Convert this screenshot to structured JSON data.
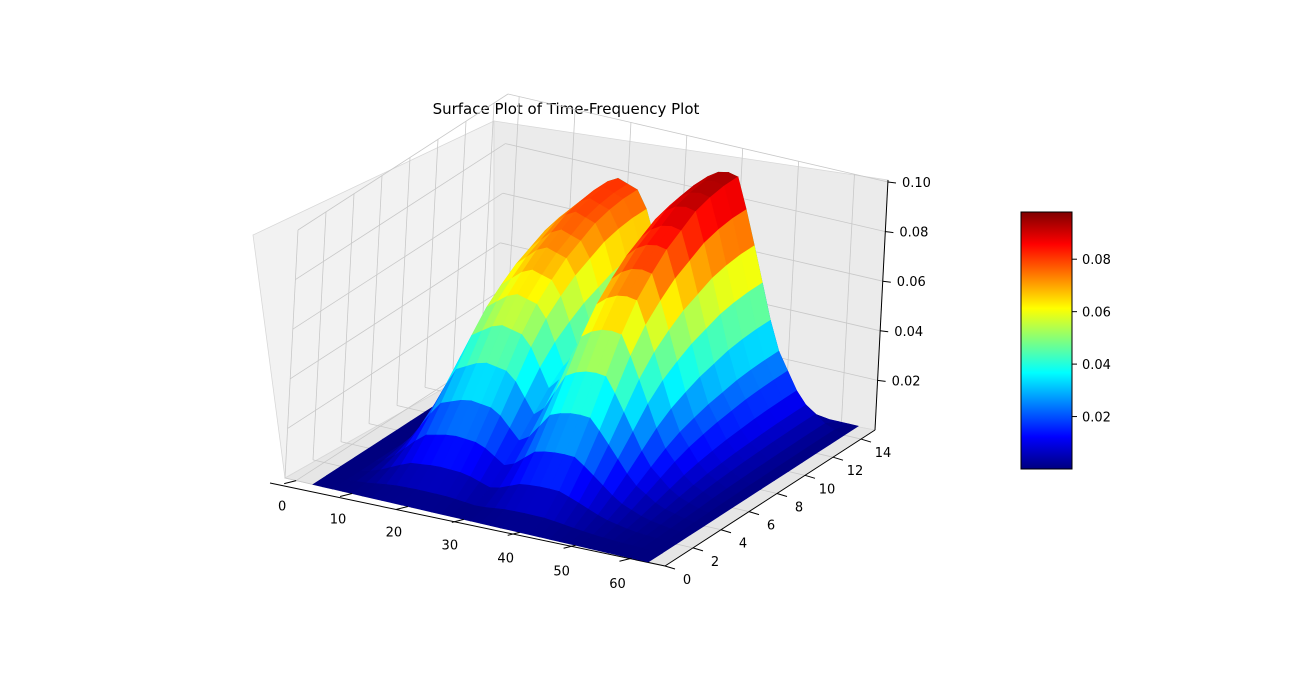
{
  "chart_data": {
    "type": "surface",
    "title": "Surface Plot of Time-Frequency Plot",
    "xlabel": "",
    "ylabel": "",
    "zlabel": "",
    "x_ticks": [
      0,
      10,
      20,
      30,
      40,
      50,
      60
    ],
    "y_ticks": [
      0,
      2,
      4,
      6,
      8,
      10,
      12,
      14
    ],
    "z_ticks": [
      "0.02",
      "0.04",
      "0.06",
      "0.08",
      "0.10"
    ],
    "xlim": [
      -2,
      66
    ],
    "ylim": [
      0,
      15
    ],
    "zlim": [
      0.0,
      0.1
    ],
    "colormap": "jet",
    "colorbar": {
      "range": [
        0.0,
        0.098
      ],
      "ticks": [
        "0.02",
        "0.04",
        "0.06",
        "0.08"
      ],
      "colors": [
        "#00007f",
        "#0000ff",
        "#007fff",
        "#00ffff",
        "#7fff7f",
        "#ffff00",
        "#ff7f00",
        "#ff0000",
        "#7f0000"
      ]
    },
    "profile_along_x": {
      "x": [
        3,
        7,
        10,
        12,
        15,
        20,
        25,
        30,
        35,
        38,
        40,
        42,
        45,
        50,
        55,
        60,
        63
      ],
      "z": [
        0.0,
        0.0,
        0.02,
        0.04,
        0.07,
        0.082,
        0.078,
        0.045,
        0.088,
        0.093,
        0.094,
        0.093,
        0.07,
        0.03,
        0.01,
        0.002,
        0.0
      ]
    },
    "profile_along_y": {
      "y": [
        0,
        1,
        2,
        3,
        4,
        5,
        6,
        7,
        8,
        9,
        10,
        11,
        12,
        13,
        14,
        15
      ],
      "z": [
        0.0,
        0.003,
        0.01,
        0.02,
        0.032,
        0.045,
        0.058,
        0.068,
        0.075,
        0.081,
        0.085,
        0.089,
        0.091,
        0.092,
        0.092,
        0.0
      ]
    }
  }
}
